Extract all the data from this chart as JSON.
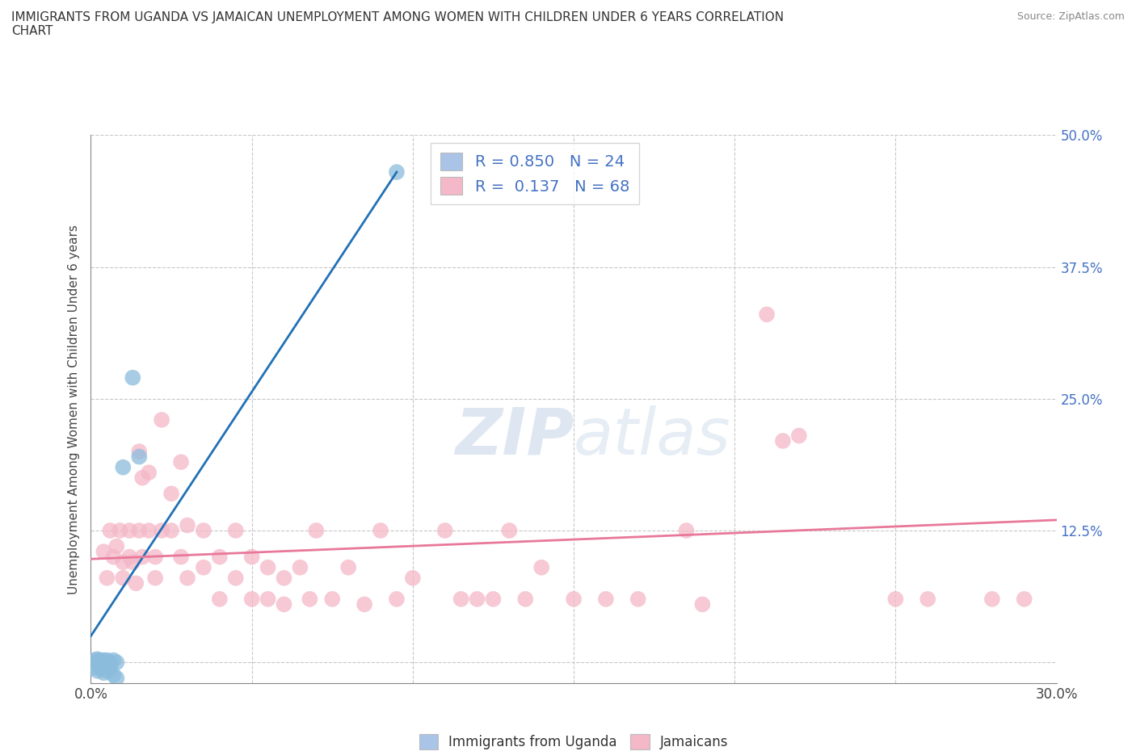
{
  "title": "IMMIGRANTS FROM UGANDA VS JAMAICAN UNEMPLOYMENT AMONG WOMEN WITH CHILDREN UNDER 6 YEARS CORRELATION\nCHART",
  "source": "Source: ZipAtlas.com",
  "ylabel": "Unemployment Among Women with Children Under 6 years",
  "x_min": 0.0,
  "x_max": 0.3,
  "y_min": -0.02,
  "y_max": 0.5,
  "x_ticks": [
    0.0,
    0.05,
    0.1,
    0.15,
    0.2,
    0.25,
    0.3
  ],
  "x_tick_labels": [
    "0.0%",
    "",
    "",
    "",
    "",
    "",
    "30.0%"
  ],
  "y_ticks": [
    0.0,
    0.125,
    0.25,
    0.375,
    0.5
  ],
  "y_tick_labels": [
    "",
    "12.5%",
    "25.0%",
    "37.5%",
    "50.0%"
  ],
  "legend_1_label": "R = 0.850   N = 24",
  "legend_2_label": "R =  0.137   N = 68",
  "legend_box_color_1": "#aac4e8",
  "legend_box_color_2": "#f4b8c8",
  "uganda_color": "#8bbcdc",
  "jamaica_color": "#f4b8c8",
  "uganda_line_color": "#2171b5",
  "jamaica_line_color": "#e8789a",
  "background_color": "#ffffff",
  "grid_color": "#c8c8c8",
  "uganda_scatter": [
    [
      0.001,
      0.002
    ],
    [
      0.001,
      -0.005
    ],
    [
      0.002,
      0.0
    ],
    [
      0.002,
      0.003
    ],
    [
      0.002,
      -0.008
    ],
    [
      0.003,
      0.002
    ],
    [
      0.003,
      -0.005
    ],
    [
      0.003,
      0.0
    ],
    [
      0.004,
      0.002
    ],
    [
      0.004,
      0.0
    ],
    [
      0.004,
      -0.01
    ],
    [
      0.005,
      0.0
    ],
    [
      0.005,
      0.002
    ],
    [
      0.005,
      -0.008
    ],
    [
      0.006,
      0.0
    ],
    [
      0.006,
      -0.005
    ],
    [
      0.007,
      0.002
    ],
    [
      0.007,
      -0.012
    ],
    [
      0.008,
      0.0
    ],
    [
      0.008,
      -0.015
    ],
    [
      0.01,
      0.185
    ],
    [
      0.013,
      0.27
    ],
    [
      0.015,
      0.195
    ],
    [
      0.095,
      0.465
    ]
  ],
  "jamaica_scatter": [
    [
      0.004,
      0.105
    ],
    [
      0.005,
      0.08
    ],
    [
      0.006,
      0.125
    ],
    [
      0.007,
      0.1
    ],
    [
      0.008,
      0.11
    ],
    [
      0.009,
      0.125
    ],
    [
      0.01,
      0.095
    ],
    [
      0.01,
      0.08
    ],
    [
      0.012,
      0.1
    ],
    [
      0.012,
      0.125
    ],
    [
      0.013,
      0.095
    ],
    [
      0.014,
      0.075
    ],
    [
      0.015,
      0.2
    ],
    [
      0.015,
      0.125
    ],
    [
      0.016,
      0.175
    ],
    [
      0.016,
      0.1
    ],
    [
      0.018,
      0.18
    ],
    [
      0.018,
      0.125
    ],
    [
      0.02,
      0.1
    ],
    [
      0.02,
      0.08
    ],
    [
      0.022,
      0.23
    ],
    [
      0.022,
      0.125
    ],
    [
      0.025,
      0.16
    ],
    [
      0.025,
      0.125
    ],
    [
      0.028,
      0.19
    ],
    [
      0.028,
      0.1
    ],
    [
      0.03,
      0.13
    ],
    [
      0.03,
      0.08
    ],
    [
      0.035,
      0.125
    ],
    [
      0.035,
      0.09
    ],
    [
      0.04,
      0.1
    ],
    [
      0.04,
      0.06
    ],
    [
      0.045,
      0.125
    ],
    [
      0.045,
      0.08
    ],
    [
      0.05,
      0.1
    ],
    [
      0.05,
      0.06
    ],
    [
      0.055,
      0.09
    ],
    [
      0.055,
      0.06
    ],
    [
      0.06,
      0.08
    ],
    [
      0.06,
      0.055
    ],
    [
      0.065,
      0.09
    ],
    [
      0.068,
      0.06
    ],
    [
      0.07,
      0.125
    ],
    [
      0.075,
      0.06
    ],
    [
      0.08,
      0.09
    ],
    [
      0.085,
      0.055
    ],
    [
      0.09,
      0.125
    ],
    [
      0.095,
      0.06
    ],
    [
      0.1,
      0.08
    ],
    [
      0.11,
      0.125
    ],
    [
      0.115,
      0.06
    ],
    [
      0.12,
      0.06
    ],
    [
      0.125,
      0.06
    ],
    [
      0.13,
      0.125
    ],
    [
      0.135,
      0.06
    ],
    [
      0.14,
      0.09
    ],
    [
      0.15,
      0.06
    ],
    [
      0.16,
      0.06
    ],
    [
      0.17,
      0.06
    ],
    [
      0.185,
      0.125
    ],
    [
      0.19,
      0.055
    ],
    [
      0.21,
      0.33
    ],
    [
      0.215,
      0.21
    ],
    [
      0.22,
      0.215
    ],
    [
      0.25,
      0.06
    ],
    [
      0.26,
      0.06
    ],
    [
      0.28,
      0.06
    ],
    [
      0.29,
      0.06
    ]
  ],
  "uganda_line_x": [
    0.0,
    0.095
  ],
  "uganda_line_y": [
    0.025,
    0.465
  ],
  "jamaica_line_x": [
    0.0,
    0.3
  ],
  "jamaica_line_y": [
    0.098,
    0.135
  ]
}
